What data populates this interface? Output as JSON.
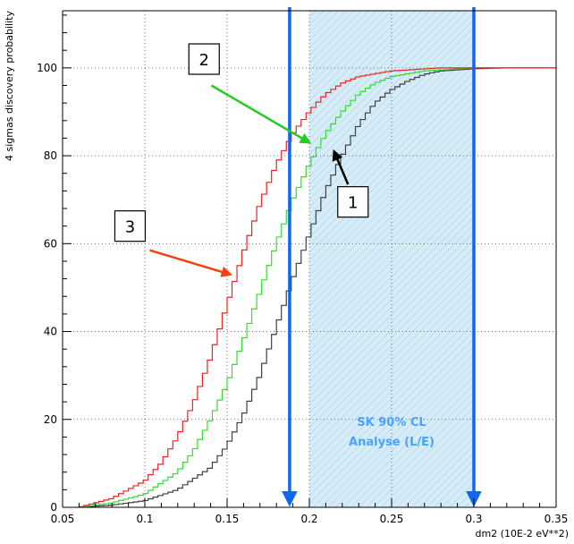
{
  "chart_data": {
    "type": "line",
    "xlabel": "dm2 (10E-2 eV**2)",
    "ylabel": "4 sigmas discovery probability",
    "xlim": [
      0.05,
      0.35
    ],
    "ylim": [
      0,
      113
    ],
    "x_ticks": [
      "0.05",
      "0.1",
      "0.15",
      "0.2",
      "0.25",
      "0.3",
      "0.35"
    ],
    "y_ticks": [
      "0",
      "20",
      "40",
      "60",
      "80",
      "100"
    ],
    "x_tick_values": [
      0.05,
      0.1,
      0.15,
      0.2,
      0.25,
      0.3,
      0.35
    ],
    "y_tick_values": [
      0,
      20,
      40,
      60,
      80,
      100
    ],
    "grid": true,
    "line_style": "step",
    "series": [
      {
        "id": "1",
        "color": "#404040",
        "points": [
          [
            0.06,
            0
          ],
          [
            0.08,
            0.5
          ],
          [
            0.1,
            1.5
          ],
          [
            0.12,
            4
          ],
          [
            0.14,
            9
          ],
          [
            0.15,
            14
          ],
          [
            0.16,
            21
          ],
          [
            0.17,
            30
          ],
          [
            0.18,
            41
          ],
          [
            0.19,
            52
          ],
          [
            0.2,
            62
          ],
          [
            0.21,
            72
          ],
          [
            0.22,
            80
          ],
          [
            0.23,
            87
          ],
          [
            0.24,
            92
          ],
          [
            0.25,
            95
          ],
          [
            0.26,
            97
          ],
          [
            0.27,
            98.5
          ],
          [
            0.28,
            99.3
          ],
          [
            0.3,
            99.8
          ],
          [
            0.32,
            100
          ],
          [
            0.35,
            100
          ]
        ]
      },
      {
        "id": "2",
        "color": "#33dd33",
        "points": [
          [
            0.06,
            0
          ],
          [
            0.08,
            1
          ],
          [
            0.1,
            3
          ],
          [
            0.12,
            8
          ],
          [
            0.13,
            13
          ],
          [
            0.14,
            20
          ],
          [
            0.15,
            28
          ],
          [
            0.16,
            38
          ],
          [
            0.17,
            49
          ],
          [
            0.18,
            60
          ],
          [
            0.19,
            70
          ],
          [
            0.2,
            78
          ],
          [
            0.21,
            85
          ],
          [
            0.22,
            90
          ],
          [
            0.23,
            94
          ],
          [
            0.24,
            96.5
          ],
          [
            0.25,
            98
          ],
          [
            0.27,
            99.3
          ],
          [
            0.3,
            100
          ],
          [
            0.35,
            100
          ]
        ]
      },
      {
        "id": "3",
        "color": "#ee2222",
        "points": [
          [
            0.06,
            0
          ],
          [
            0.08,
            2
          ],
          [
            0.1,
            6
          ],
          [
            0.11,
            10
          ],
          [
            0.12,
            16
          ],
          [
            0.13,
            24
          ],
          [
            0.14,
            34
          ],
          [
            0.15,
            46
          ],
          [
            0.16,
            58
          ],
          [
            0.17,
            69
          ],
          [
            0.18,
            78
          ],
          [
            0.19,
            85
          ],
          [
            0.2,
            90
          ],
          [
            0.21,
            94
          ],
          [
            0.22,
            96.5
          ],
          [
            0.23,
            98
          ],
          [
            0.25,
            99.3
          ],
          [
            0.28,
            100
          ],
          [
            0.35,
            100
          ]
        ]
      }
    ],
    "band": {
      "x_range": [
        0.2,
        0.3
      ],
      "label_lines": [
        "SK 90% CL",
        "Analyse (L/E)"
      ],
      "color": "#d6ecf7"
    },
    "vertical_arrows": [
      {
        "x": 0.188,
        "color": "#1166ee"
      },
      {
        "x": 0.3,
        "color": "#1166ee"
      }
    ],
    "annotations": [
      {
        "label": "1",
        "target_x": 0.215,
        "target_y": 81,
        "arrow_color": "#000000"
      },
      {
        "label": "2",
        "target_x": 0.2,
        "target_y": 83,
        "arrow_color": "#22cc22"
      },
      {
        "label": "3",
        "target_x": 0.152,
        "target_y": 53,
        "arrow_color": "#ee4411"
      }
    ]
  }
}
